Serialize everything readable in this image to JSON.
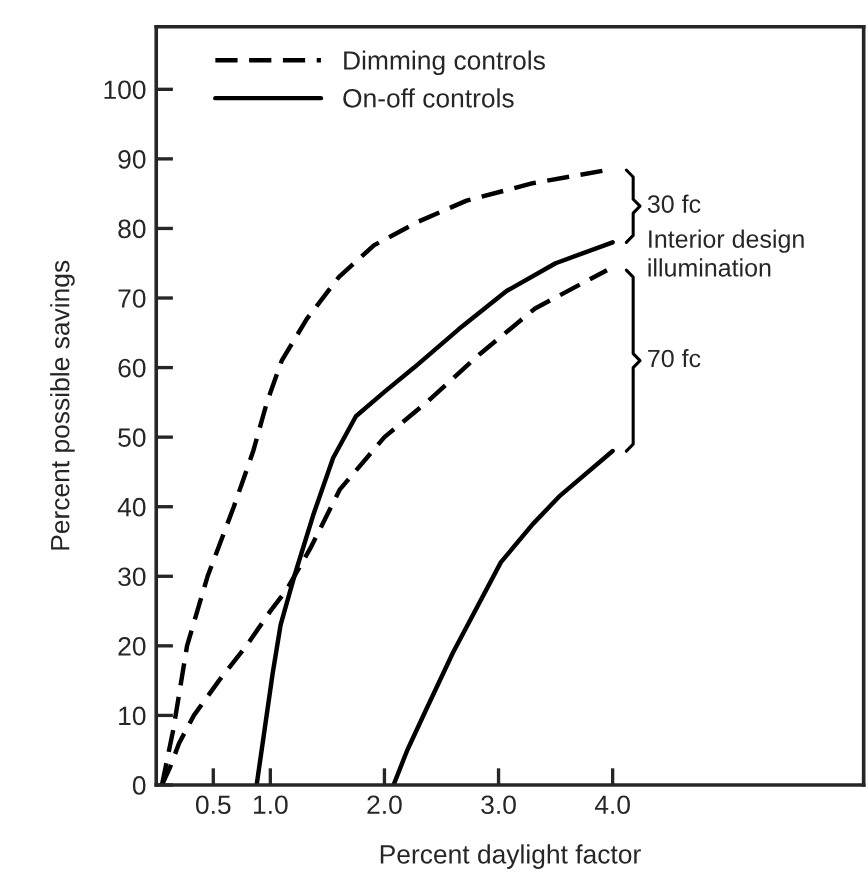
{
  "chart_data": {
    "type": "line",
    "xlabel": "Percent daylight factor",
    "ylabel": "Percent possible savings",
    "xlim": [
      0,
      6.2
    ],
    "ylim": [
      0,
      109
    ],
    "xticks": [
      0.5,
      {
        "value": 1,
        "label": "1.0"
      },
      {
        "value": 2,
        "label": "2.0"
      },
      {
        "value": 3,
        "label": "3.0"
      },
      {
        "value": 4,
        "label": "4.0"
      }
    ],
    "yticks": [
      0,
      10,
      20,
      30,
      40,
      50,
      60,
      70,
      80,
      90,
      100
    ],
    "grid": false,
    "legend": "top left",
    "marker": "none",
    "series": [
      {
        "name": "Dimming controls",
        "color": "#000000",
        "line_style": "dashed",
        "x": [
          0.05,
          0.15,
          0.27,
          0.45,
          0.68,
          0.85,
          0.97,
          1.1,
          1.32,
          1.6,
          1.91,
          2.3,
          2.72,
          3.3,
          3.95
        ],
        "values": [
          0,
          8,
          20,
          30,
          40,
          48,
          55,
          61,
          67,
          73,
          77.6,
          81,
          84,
          86.5,
          88.4
        ]
      },
      {
        "name": "On-off controls",
        "color": "#000000",
        "line_style": "solid",
        "x": [
          0.88,
          0.95,
          1.02,
          1.09,
          1.21,
          1.38,
          1.55,
          1.75,
          2.0,
          2.26,
          2.65,
          3.07,
          3.5,
          4.0
        ],
        "values": [
          0,
          8,
          16,
          23,
          30,
          39,
          47,
          53,
          56.5,
          60,
          65.5,
          71,
          75,
          78
        ]
      },
      {
        "color": "#000000",
        "line_style": "dashed",
        "x": [
          0.05,
          0.12,
          0.2,
          0.33,
          0.55,
          0.79,
          1.0,
          1.14,
          1.35,
          1.61,
          2.0,
          2.37,
          2.84,
          3.32,
          3.95
        ],
        "values": [
          0,
          2.5,
          6,
          10,
          15,
          20,
          25,
          28,
          34,
          42.5,
          50,
          55,
          62,
          68.5,
          74
        ]
      },
      {
        "color": "#000000",
        "line_style": "solid",
        "x": [
          2.08,
          2.2,
          2.37,
          2.6,
          3.02,
          3.3,
          3.54,
          4.0
        ],
        "values": [
          0,
          5,
          11,
          19,
          32,
          37.5,
          41.6,
          48
        ]
      }
    ],
    "annotations": [
      "30 fc",
      "Interior design\nillumination",
      "70 fc"
    ]
  }
}
